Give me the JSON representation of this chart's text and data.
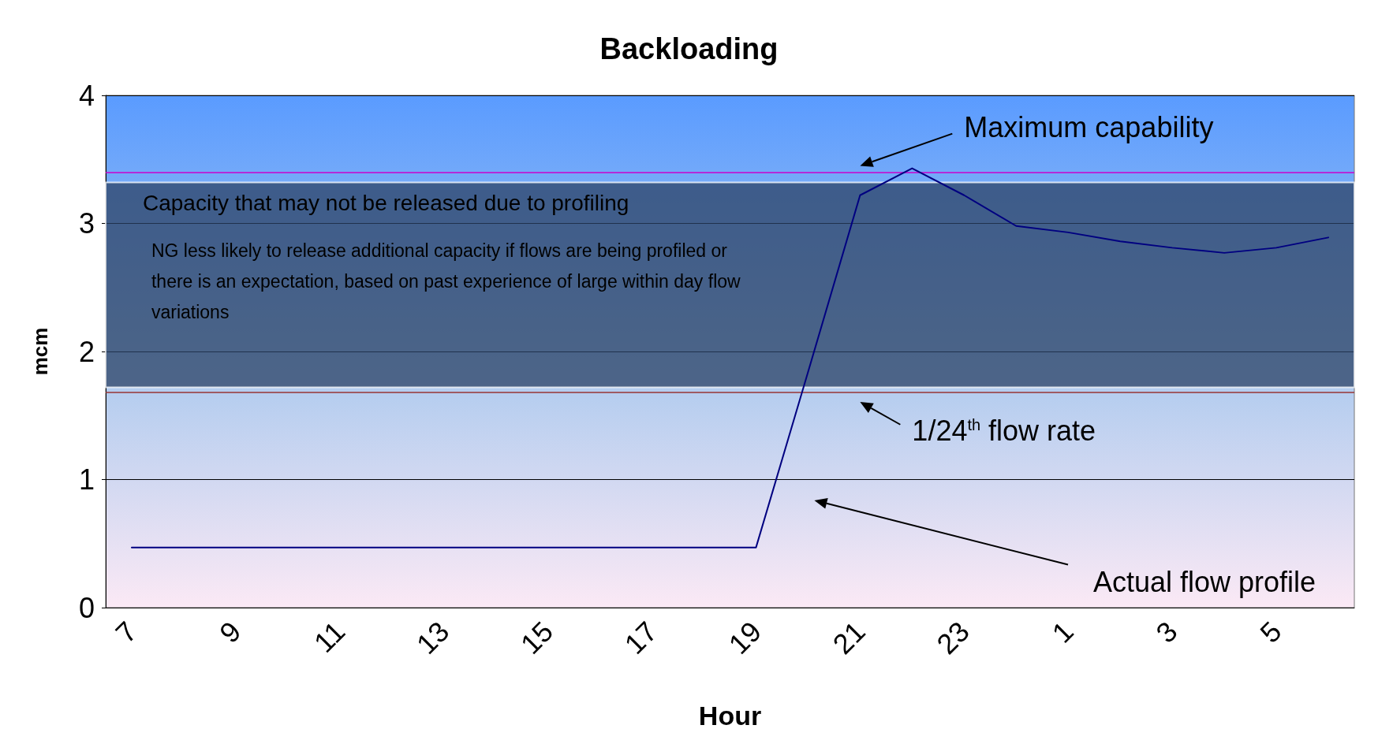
{
  "chart_data": {
    "type": "line",
    "title": "Backloading",
    "xlabel": "Hour",
    "ylabel": "mcm",
    "categories": [
      "7",
      null,
      "9",
      null,
      "11",
      null,
      "13",
      null,
      "15",
      null,
      "17",
      null,
      "19",
      null,
      "21",
      null,
      "23",
      null,
      "1",
      null,
      "3",
      null,
      "5",
      null
    ],
    "series": [
      {
        "color": "#000080",
        "values": [
          0.47,
          0.47,
          0.47,
          0.47,
          0.47,
          0.47,
          0.47,
          0.47,
          0.47,
          0.47,
          0.47,
          0.47,
          0.47,
          1.84,
          3.22,
          3.43,
          3.22,
          2.98,
          2.93,
          2.86,
          2.81,
          2.77,
          2.81,
          2.89
        ]
      }
    ],
    "ylim": [
      0,
      4
    ],
    "yticks": [
      0,
      1,
      2,
      3,
      4
    ],
    "grid": "y",
    "marker": "none",
    "line_style": "solid",
    "ref_lines": [
      {
        "axis": "y",
        "value": 3.4,
        "label": "Maximum capability",
        "color": "#cc00cc"
      },
      {
        "axis": "y",
        "value": 1.68,
        "label": "1/24$^{th}$ flow rate",
        "color": "#993333"
      }
    ],
    "bands": [
      {
        "axis": "y",
        "from": 1.72,
        "to": 3.32,
        "label": "Capacity that may not be released due to profiling",
        "color": "#2b4266"
      }
    ],
    "annotations": [
      "NG less likely to release additional capacity if flows are being profiled or there is an expectation, based on past experience of large within day flow variations",
      "Actual flow profile"
    ]
  }
}
